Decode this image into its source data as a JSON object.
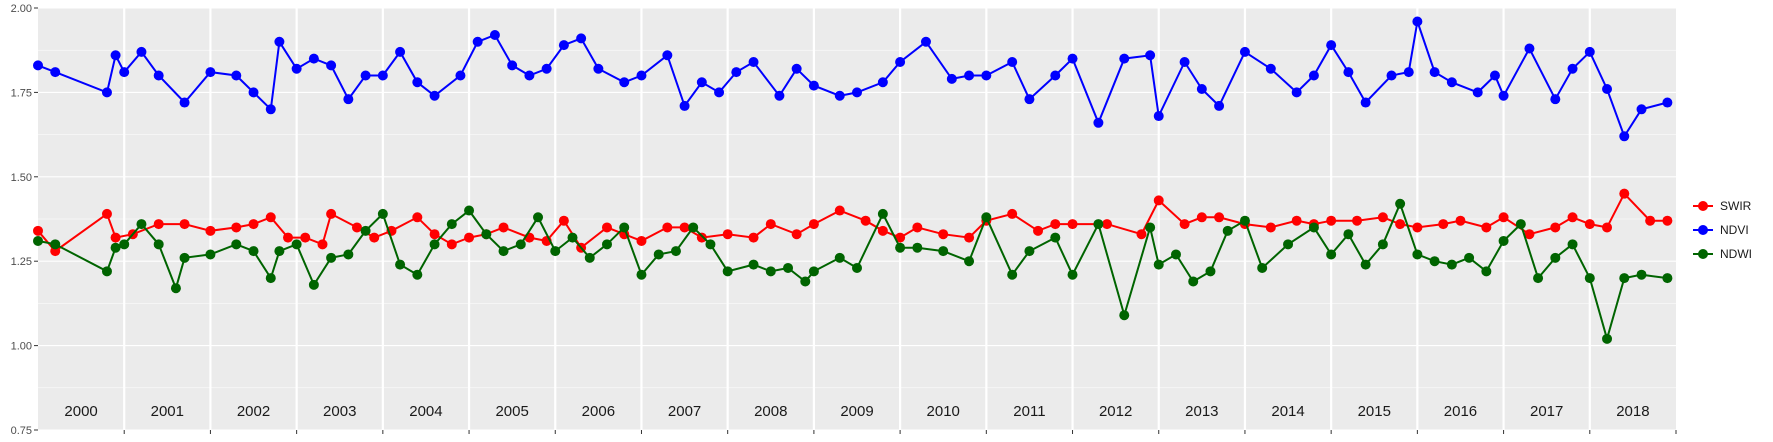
{
  "chart_data": {
    "type": "line",
    "title": "",
    "xlabel": "",
    "ylabel": "",
    "ylim": [
      0.75,
      2.0
    ],
    "y_ticks": [
      "0.75",
      "1.00",
      "1.25",
      "1.50",
      "1.75",
      "2.00"
    ],
    "x_range": [
      2000.0,
      2019.0
    ],
    "grid": true,
    "legend_position": "right",
    "years": [
      "2000",
      "2001",
      "2002",
      "2003",
      "2004",
      "2005",
      "2006",
      "2007",
      "2008",
      "2009",
      "2010",
      "2011",
      "2012",
      "2013",
      "2014",
      "2015",
      "2016",
      "2017",
      "2018"
    ],
    "series": [
      {
        "name": "SWIR",
        "color": "#ff0000",
        "x": [
          2000.0,
          2000.2,
          2000.8,
          2000.9,
          2001.1,
          2001.4,
          2001.7,
          2002.0,
          2002.3,
          2002.5,
          2002.7,
          2002.9,
          2003.1,
          2003.3,
          2003.4,
          2003.7,
          2003.9,
          2004.1,
          2004.4,
          2004.6,
          2004.8,
          2005.0,
          2005.2,
          2005.4,
          2005.7,
          2005.9,
          2006.1,
          2006.3,
          2006.6,
          2006.8,
          2007.0,
          2007.3,
          2007.5,
          2007.7,
          2008.0,
          2008.3,
          2008.5,
          2008.8,
          2009.0,
          2009.3,
          2009.6,
          2009.8,
          2010.0,
          2010.2,
          2010.5,
          2010.8,
          2011.0,
          2011.3,
          2011.6,
          2011.8,
          2012.0,
          2012.4,
          2012.8,
          2013.0,
          2013.3,
          2013.5,
          2013.7,
          2014.0,
          2014.3,
          2014.6,
          2014.8,
          2015.0,
          2015.3,
          2015.6,
          2015.8,
          2016.0,
          2016.3,
          2016.5,
          2016.8,
          2017.0,
          2017.3,
          2017.6,
          2017.8,
          2018.0,
          2018.2,
          2018.4,
          2018.7,
          2018.9
        ],
        "values": [
          1.34,
          1.28,
          1.39,
          1.32,
          1.33,
          1.36,
          1.36,
          1.34,
          1.35,
          1.36,
          1.38,
          1.32,
          1.32,
          1.3,
          1.39,
          1.35,
          1.32,
          1.34,
          1.38,
          1.33,
          1.3,
          1.32,
          1.33,
          1.35,
          1.32,
          1.31,
          1.37,
          1.29,
          1.35,
          1.33,
          1.31,
          1.35,
          1.35,
          1.32,
          1.33,
          1.32,
          1.36,
          1.33,
          1.36,
          1.4,
          1.37,
          1.34,
          1.32,
          1.35,
          1.33,
          1.32,
          1.37,
          1.39,
          1.34,
          1.36,
          1.36,
          1.36,
          1.33,
          1.43,
          1.36,
          1.38,
          1.38,
          1.36,
          1.35,
          1.37,
          1.36,
          1.37,
          1.37,
          1.38,
          1.36,
          1.35,
          1.36,
          1.37,
          1.35,
          1.38,
          1.33,
          1.35,
          1.38,
          1.36,
          1.35,
          1.45,
          1.37,
          1.37
        ]
      },
      {
        "name": "NDVI",
        "color": "#0000ff",
        "x": [
          2000.0,
          2000.2,
          2000.8,
          2000.9,
          2001.0,
          2001.2,
          2001.4,
          2001.7,
          2002.0,
          2002.3,
          2002.5,
          2002.7,
          2002.8,
          2003.0,
          2003.2,
          2003.4,
          2003.6,
          2003.8,
          2004.0,
          2004.2,
          2004.4,
          2004.6,
          2004.9,
          2005.1,
          2005.3,
          2005.5,
          2005.7,
          2005.9,
          2006.1,
          2006.3,
          2006.5,
          2006.8,
          2007.0,
          2007.3,
          2007.5,
          2007.7,
          2007.9,
          2008.1,
          2008.3,
          2008.6,
          2008.8,
          2009.0,
          2009.3,
          2009.5,
          2009.8,
          2010.0,
          2010.3,
          2010.6,
          2010.8,
          2011.0,
          2011.3,
          2011.5,
          2011.8,
          2012.0,
          2012.3,
          2012.6,
          2012.9,
          2013.0,
          2013.3,
          2013.5,
          2013.7,
          2014.0,
          2014.3,
          2014.6,
          2014.8,
          2015.0,
          2015.2,
          2015.4,
          2015.7,
          2015.9,
          2016.0,
          2016.2,
          2016.4,
          2016.7,
          2016.9,
          2017.0,
          2017.3,
          2017.6,
          2017.8,
          2018.0,
          2018.2,
          2018.4,
          2018.6,
          2018.9
        ],
        "values": [
          1.83,
          1.81,
          1.75,
          1.86,
          1.81,
          1.87,
          1.8,
          1.72,
          1.81,
          1.8,
          1.75,
          1.7,
          1.9,
          1.82,
          1.85,
          1.83,
          1.73,
          1.8,
          1.8,
          1.87,
          1.78,
          1.74,
          1.8,
          1.9,
          1.92,
          1.83,
          1.8,
          1.82,
          1.89,
          1.91,
          1.82,
          1.78,
          1.8,
          1.86,
          1.71,
          1.78,
          1.75,
          1.81,
          1.84,
          1.74,
          1.82,
          1.77,
          1.74,
          1.75,
          1.78,
          1.84,
          1.9,
          1.79,
          1.8,
          1.8,
          1.84,
          1.73,
          1.8,
          1.85,
          1.66,
          1.85,
          1.86,
          1.68,
          1.84,
          1.76,
          1.71,
          1.87,
          1.82,
          1.75,
          1.8,
          1.89,
          1.81,
          1.72,
          1.8,
          1.81,
          1.96,
          1.81,
          1.78,
          1.75,
          1.8,
          1.74,
          1.88,
          1.73,
          1.82,
          1.87,
          1.76,
          1.62,
          1.7,
          1.72
        ]
      },
      {
        "name": "NDWI",
        "color": "#006400",
        "x": [
          2000.0,
          2000.2,
          2000.8,
          2000.9,
          2001.0,
          2001.2,
          2001.4,
          2001.6,
          2001.7,
          2002.0,
          2002.3,
          2002.5,
          2002.7,
          2002.8,
          2003.0,
          2003.2,
          2003.4,
          2003.6,
          2003.8,
          2004.0,
          2004.2,
          2004.4,
          2004.6,
          2004.8,
          2005.0,
          2005.2,
          2005.4,
          2005.6,
          2005.8,
          2006.0,
          2006.2,
          2006.4,
          2006.6,
          2006.8,
          2007.0,
          2007.2,
          2007.4,
          2007.6,
          2007.8,
          2008.0,
          2008.3,
          2008.5,
          2008.7,
          2008.9,
          2009.0,
          2009.3,
          2009.5,
          2009.8,
          2010.0,
          2010.2,
          2010.5,
          2010.8,
          2011.0,
          2011.3,
          2011.5,
          2011.8,
          2012.0,
          2012.3,
          2012.6,
          2012.9,
          2013.0,
          2013.2,
          2013.4,
          2013.6,
          2013.8,
          2014.0,
          2014.2,
          2014.5,
          2014.8,
          2015.0,
          2015.2,
          2015.4,
          2015.6,
          2015.8,
          2016.0,
          2016.2,
          2016.4,
          2016.6,
          2016.8,
          2017.0,
          2017.2,
          2017.4,
          2017.6,
          2017.8,
          2018.0,
          2018.2,
          2018.4,
          2018.6,
          2018.9
        ],
        "values": [
          1.31,
          1.3,
          1.22,
          1.29,
          1.3,
          1.36,
          1.3,
          1.17,
          1.26,
          1.27,
          1.3,
          1.28,
          1.2,
          1.28,
          1.3,
          1.18,
          1.26,
          1.27,
          1.34,
          1.39,
          1.24,
          1.21,
          1.3,
          1.36,
          1.4,
          1.33,
          1.28,
          1.3,
          1.38,
          1.28,
          1.32,
          1.26,
          1.3,
          1.35,
          1.21,
          1.27,
          1.28,
          1.35,
          1.3,
          1.22,
          1.24,
          1.22,
          1.23,
          1.19,
          1.22,
          1.26,
          1.23,
          1.39,
          1.29,
          1.29,
          1.28,
          1.25,
          1.38,
          1.21,
          1.28,
          1.32,
          1.21,
          1.36,
          1.09,
          1.35,
          1.24,
          1.27,
          1.19,
          1.22,
          1.34,
          1.37,
          1.23,
          1.3,
          1.35,
          1.27,
          1.33,
          1.24,
          1.3,
          1.42,
          1.27,
          1.25,
          1.24,
          1.26,
          1.22,
          1.31,
          1.36,
          1.2,
          1.26,
          1.3,
          1.2,
          1.02,
          1.2,
          1.21,
          1.2
        ]
      }
    ]
  }
}
